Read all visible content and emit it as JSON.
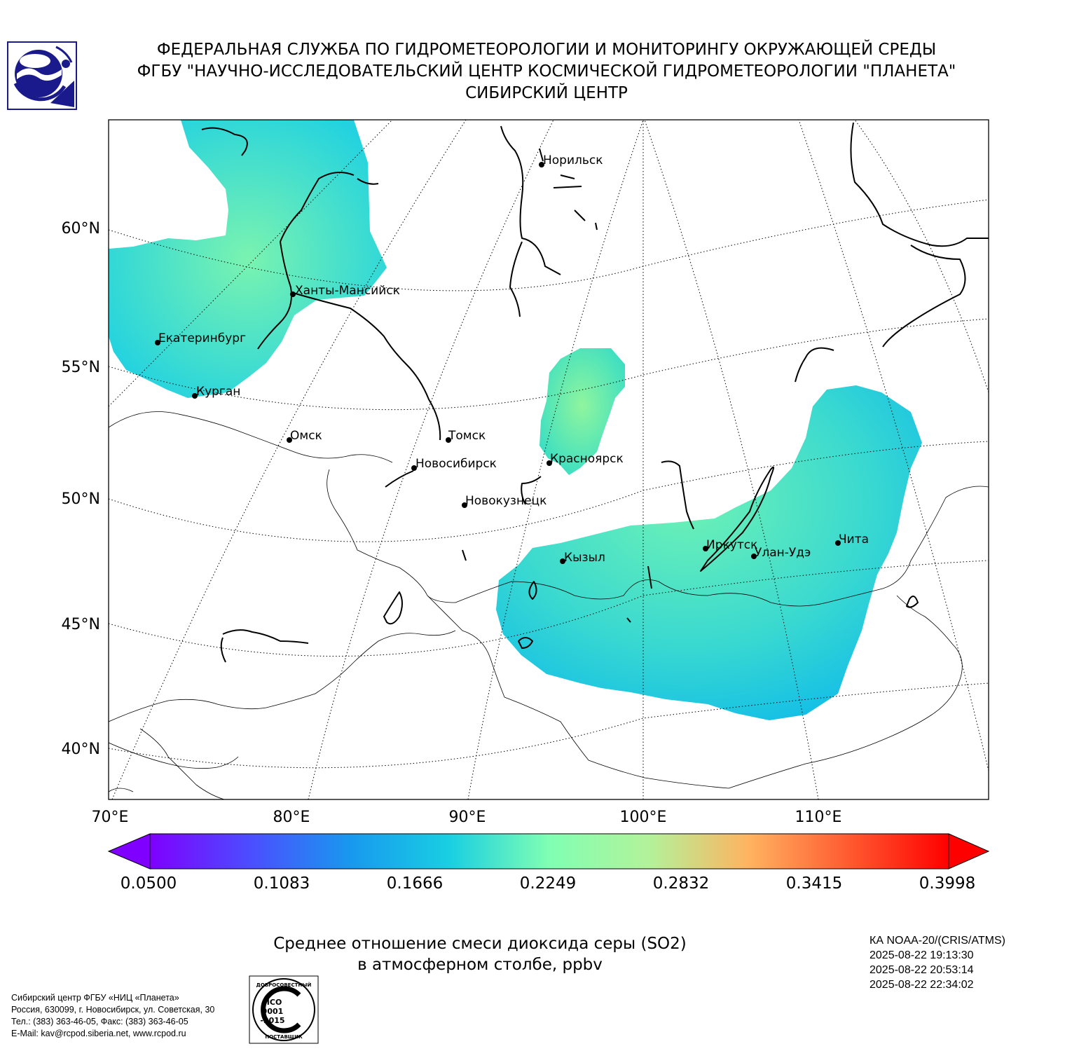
{
  "header": {
    "line1": "ФЕДЕРАЛЬНАЯ СЛУЖБА ПО ГИДРОМЕТЕОРОЛОГИИ И МОНИТОРИНГУ ОКРУЖАЮЩЕЙ СРЕДЫ",
    "line2": "ФГБУ \"НАУЧНО-ИССЛЕДОВАТЕЛЬСКИЙ ЦЕНТР КОСМИЧЕСКОЙ ГИДРОМЕТЕОРОЛОГИИ \"ПЛАНЕТА\"",
    "line3": "СИБИРСКИЙ ЦЕНТР",
    "logo_icon": "planeta-logo-icon"
  },
  "map": {
    "latitude_labels": [
      "60°N",
      "55°N",
      "50°N",
      "45°N",
      "40°N"
    ],
    "longitude_labels": [
      "70°E",
      "80°E",
      "90°E",
      "100°E",
      "110°E"
    ],
    "cities": [
      {
        "name": "Норильск"
      },
      {
        "name": "Ханты-Мансийск"
      },
      {
        "name": "Екатеринбург"
      },
      {
        "name": "Курган"
      },
      {
        "name": "Омск"
      },
      {
        "name": "Томск"
      },
      {
        "name": "Новосибирск"
      },
      {
        "name": "Красноярск"
      },
      {
        "name": "Новокузнецк"
      },
      {
        "name": "Кызыл"
      },
      {
        "name": "Иркутск"
      },
      {
        "name": "Улан-Удэ"
      },
      {
        "name": "Чита"
      }
    ],
    "colors": {
      "plume_cyan": "#22d2e0",
      "plume_green": "#6cf2b4",
      "coastline": "#000000"
    }
  },
  "colorbar": {
    "ticks": [
      "0.0500",
      "0.1083",
      "0.1666",
      "0.2249",
      "0.2832",
      "0.3415",
      "0.3998"
    ],
    "min": 0.05,
    "max": 0.3998,
    "extend": "both",
    "colormap": "rainbow"
  },
  "caption": {
    "line1": "Среднее отношение смеси диоксида серы (SO2)",
    "line2": "в атмосферном столбе, ppbv"
  },
  "satellite": {
    "name": "КА NOAA-20/(CRIS/ATMS)",
    "time1": "2025-08-22 19:13:30",
    "time2": "2025-08-22 20:53:14",
    "time3": "2025-08-22 22:34:02"
  },
  "org": {
    "line1": "Сибирский центр ФГБУ «НИЦ «Планета»",
    "line2": "Россия, 630099, г. Новосибирск, ул. Советская, 30",
    "line3": "Тел.: (383) 363-46-05, Факс: (383) 363-46-05",
    "line4": "E-Mail: kav@rcpod.siberia.net, www.rcpod.ru"
  },
  "iso_badge": {
    "top_text": "ДОБРОСОВЕСТНЫЙ",
    "l1": "ИСО",
    "l2": "9001",
    "l3": "-2015",
    "bottom_text": "ПОСТАВЩИК"
  }
}
